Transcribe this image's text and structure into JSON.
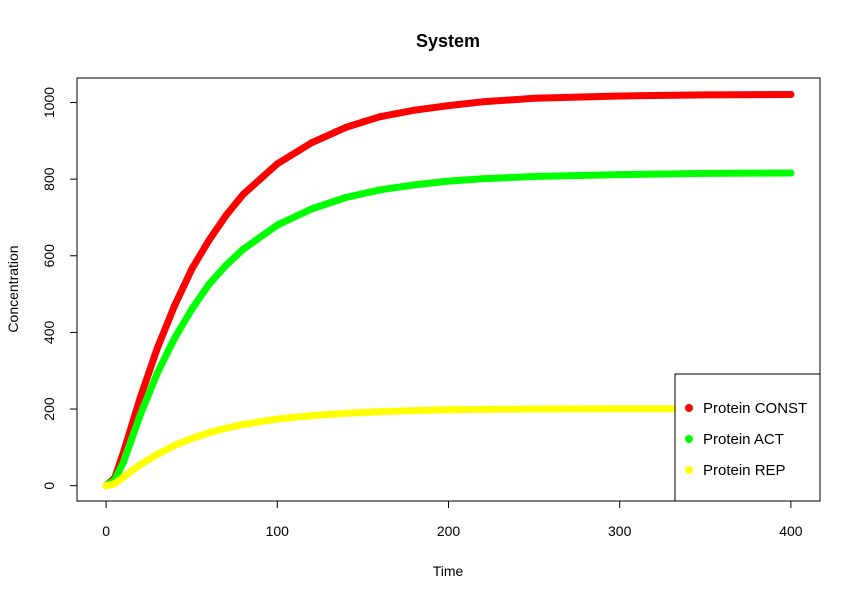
{
  "chart_data": {
    "type": "line",
    "title": "System",
    "xlabel": "Time",
    "ylabel": "Concentration",
    "xlim": [
      -17,
      417
    ],
    "ylim": [
      -40,
      1064
    ],
    "xticks": [
      "0",
      "100",
      "200",
      "300",
      "400"
    ],
    "yticks": [
      "0",
      "200",
      "400",
      "600",
      "800",
      "1000"
    ],
    "legend_position": "bottom-right",
    "grid": false,
    "series": [
      {
        "name": "Protein CONST",
        "color": "#ff0000",
        "x": [
          0,
          5,
          10,
          20,
          30,
          40,
          50,
          60,
          70,
          80,
          100,
          120,
          140,
          160,
          180,
          200,
          220,
          250,
          300,
          350,
          400
        ],
        "y": [
          0,
          20,
          85,
          230,
          360,
          470,
          565,
          640,
          705,
          760,
          840,
          895,
          935,
          963,
          980,
          992,
          1002,
          1011,
          1017,
          1020,
          1021
        ]
      },
      {
        "name": "Protein ACT",
        "color": "#00ff00",
        "x": [
          0,
          5,
          10,
          20,
          30,
          40,
          50,
          60,
          70,
          80,
          100,
          120,
          140,
          160,
          180,
          200,
          220,
          250,
          300,
          350,
          400
        ],
        "y": [
          0,
          15,
          60,
          185,
          295,
          385,
          460,
          525,
          575,
          617,
          680,
          722,
          752,
          772,
          785,
          795,
          801,
          807,
          812,
          815,
          816
        ]
      },
      {
        "name": "Protein REP",
        "color": "#ffff00",
        "x": [
          0,
          5,
          10,
          20,
          30,
          40,
          50,
          60,
          70,
          80,
          100,
          120,
          140,
          160,
          180,
          200,
          220,
          250,
          300,
          350,
          400
        ],
        "y": [
          0,
          5,
          22,
          55,
          82,
          105,
          123,
          138,
          150,
          160,
          174,
          183,
          189,
          193,
          196,
          198,
          199,
          200,
          201,
          201,
          201
        ]
      }
    ]
  }
}
